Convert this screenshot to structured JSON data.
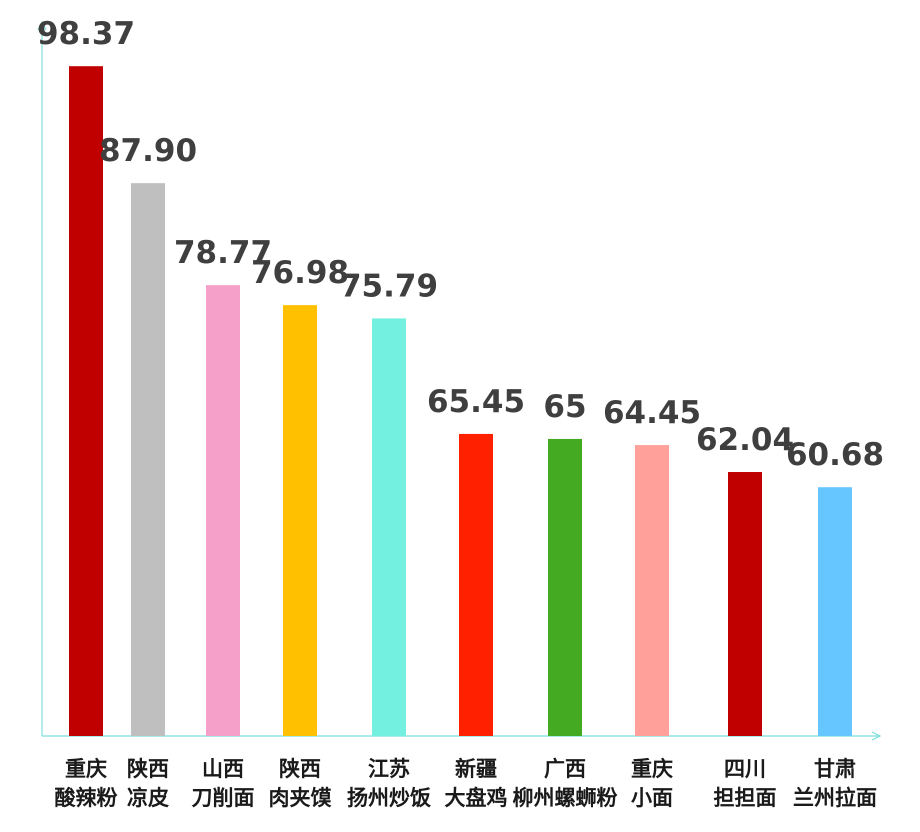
{
  "chart_data": {
    "type": "bar",
    "categories": [
      [
        "重庆",
        "酸辣粉"
      ],
      [
        "陕西",
        "凉皮"
      ],
      [
        "山西",
        "刀削面"
      ],
      [
        "陕西",
        "肉夹馍"
      ],
      [
        "江苏",
        "扬州炒饭"
      ],
      [
        "新疆",
        "大盘鸡"
      ],
      [
        "广西",
        "柳州螺蛳粉"
      ],
      [
        "重庆",
        "小面"
      ],
      [
        "四川",
        "担担面"
      ],
      [
        "甘肃",
        "兰州拉面"
      ]
    ],
    "values": [
      98.37,
      87.9,
      78.77,
      76.98,
      75.79,
      65.45,
      65,
      64.45,
      62.04,
      60.68
    ],
    "value_labels": [
      "98.37",
      "87.90",
      "78.77",
      "76.98",
      "75.79",
      "65.45",
      "65",
      "64.45",
      "62.04",
      "60.68"
    ],
    "bar_colors": [
      "#c00000",
      "#bfbfbf",
      "#f4a0c8",
      "#ffc000",
      "#73f0df",
      "#ff2000",
      "#44aa22",
      "#ffa09a",
      "#c00000",
      "#66c6ff"
    ],
    "axis_color": "#7fdede",
    "grid": false,
    "legend": "none"
  }
}
